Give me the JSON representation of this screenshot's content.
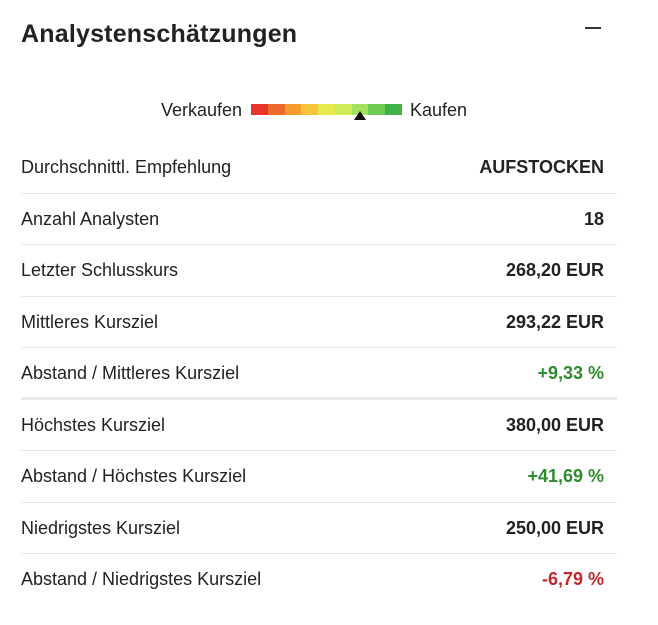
{
  "header": {
    "title": "Analystenschätzungen",
    "collapse_icon": "minus-icon"
  },
  "meter": {
    "sell_label": "Verkaufen",
    "buy_label": "Kaufen",
    "segment_colors": [
      "#e8342a",
      "#ee6a2c",
      "#f49a2f",
      "#f6c437",
      "#e7ea4a",
      "#cdec57",
      "#a6e061",
      "#6fcb53",
      "#3fb24a"
    ],
    "pointer_position": 0.72
  },
  "rows": [
    {
      "label": "Durchschnittl. Empfehlung",
      "value": "AUFSTOCKEN",
      "tone": "neutral"
    },
    {
      "label": "Anzahl Analysten",
      "value": "18",
      "tone": "neutral"
    },
    {
      "label": "Letzter Schlusskurs",
      "value": "268,20 EUR",
      "tone": "neutral"
    },
    {
      "label": "Mittleres Kursziel",
      "value": "293,22 EUR",
      "tone": "neutral"
    },
    {
      "label": "Abstand / Mittleres Kursziel",
      "value": "+9,33 %",
      "tone": "pos"
    },
    {
      "label": "Höchstes Kursziel",
      "value": "380,00 EUR",
      "tone": "neutral"
    },
    {
      "label": "Abstand / Höchstes Kursziel",
      "value": "+41,69 %",
      "tone": "pos"
    },
    {
      "label": "Niedrigstes Kursziel",
      "value": "250,00 EUR",
      "tone": "neutral"
    },
    {
      "label": "Abstand / Niedrigstes Kursziel",
      "value": "-6,79 %",
      "tone": "neg"
    }
  ]
}
